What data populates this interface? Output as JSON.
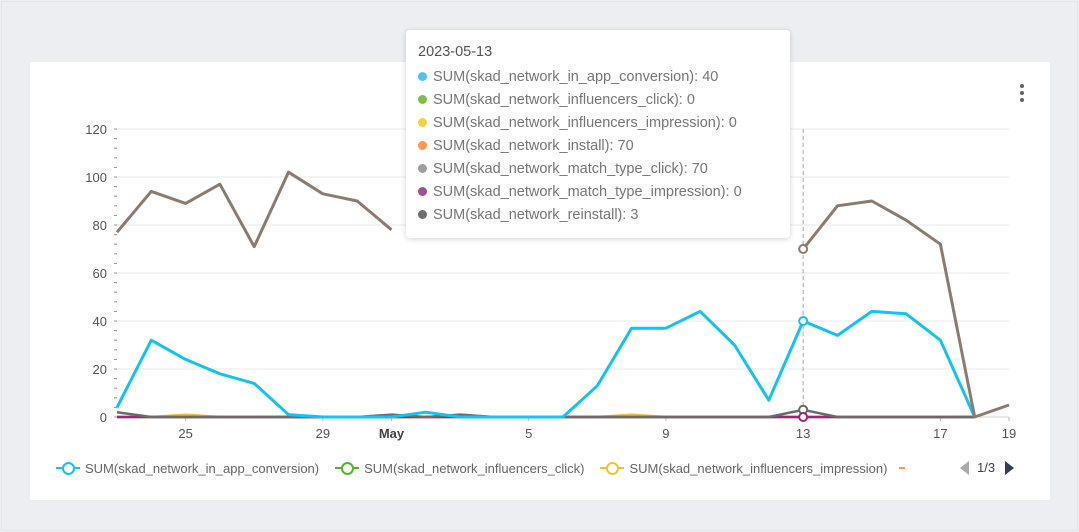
{
  "chart_data": {
    "type": "line",
    "x_ticks": [
      "25",
      "29",
      "May",
      "5",
      "9",
      "13",
      "17",
      "19"
    ],
    "ylim": [
      0,
      120
    ],
    "y_ticks": [
      0,
      20,
      40,
      60,
      80,
      100,
      120
    ],
    "grid": true,
    "series": [
      {
        "name": "SUM(skad_network_in_app_conversion)",
        "color": "#12c4f2",
        "values": [
          4,
          32,
          24,
          18,
          14,
          1,
          0,
          0,
          0,
          2,
          0,
          0,
          0,
          0,
          13,
          37,
          37,
          44,
          30,
          7,
          40,
          34,
          44,
          43,
          32,
          0,
          null
        ]
      },
      {
        "name": "SUM(skad_network_influencers_click)",
        "color": "#59b32a",
        "values": [
          0,
          0,
          0,
          0,
          0,
          0,
          0,
          0,
          0,
          0,
          0,
          0,
          0,
          0,
          0,
          0,
          0,
          0,
          0,
          0,
          0,
          0,
          0,
          0,
          0,
          0,
          null
        ]
      },
      {
        "name": "SUM(skad_network_influencers_impression)",
        "color": "#f2c42c",
        "values": [
          0,
          0,
          1,
          0,
          0,
          0,
          0,
          0,
          0,
          0,
          0,
          0,
          0,
          0,
          0,
          1,
          0,
          0,
          0,
          0,
          0,
          0,
          0,
          0,
          0,
          0,
          null
        ]
      },
      {
        "name": "SUM(skad_network_install)",
        "color": "#fd9a4b",
        "values": [
          77,
          94,
          89,
          97,
          71,
          102,
          93,
          90,
          78,
          null,
          null,
          null,
          null,
          null,
          null,
          null,
          null,
          null,
          null,
          null,
          70,
          88,
          90,
          82,
          72,
          0,
          5
        ]
      },
      {
        "name": "SUM(skad_network_match_type_click)",
        "color": "#8c7b71",
        "values": [
          77,
          94,
          89,
          97,
          71,
          102,
          93,
          90,
          78,
          null,
          null,
          null,
          null,
          null,
          null,
          null,
          null,
          null,
          null,
          null,
          70,
          88,
          90,
          82,
          72,
          0,
          5
        ]
      },
      {
        "name": "SUM(skad_network_match_type_impression)",
        "color": "#a0237f",
        "values": [
          0,
          0,
          0,
          0,
          0,
          0,
          0,
          0,
          0,
          0,
          0,
          0,
          0,
          0,
          0,
          0,
          0,
          0,
          0,
          0,
          0,
          0,
          0,
          0,
          0,
          0,
          null
        ]
      },
      {
        "name": "SUM(skad_network_reinstall)",
        "color": "#6b6b6b",
        "values": [
          2,
          0,
          0,
          0,
          0,
          0,
          0,
          0,
          1,
          0,
          1,
          0,
          0,
          0,
          0,
          0,
          0,
          0,
          0,
          0,
          3,
          0,
          0,
          0,
          0,
          0,
          null
        ]
      }
    ],
    "tooltip": {
      "title": "2023-05-13",
      "rows": [
        {
          "label": "SUM(skad_network_in_app_conversion): 40",
          "color": "#4fc3f7"
        },
        {
          "label": "SUM(skad_network_influencers_click): 0",
          "color": "#7ac143"
        },
        {
          "label": "SUM(skad_network_influencers_impression): 0",
          "color": "#f5d33f"
        },
        {
          "label": "SUM(skad_network_install): 70",
          "color": "#fd9a4b"
        },
        {
          "label": "SUM(skad_network_match_type_click): 70",
          "color": "#a0a0a0"
        },
        {
          "label": "SUM(skad_network_match_type_impression): 0",
          "color": "#a0518f"
        },
        {
          "label": "SUM(skad_network_reinstall): 3",
          "color": "#6f6f6f"
        }
      ]
    },
    "legend": {
      "items": [
        {
          "label": "SUM(skad_network_in_app_conversion)",
          "color": "#12c4f2"
        },
        {
          "label": "SUM(skad_network_influencers_click)",
          "color": "#59b32a"
        },
        {
          "label": "SUM(skad_network_influencers_impression)",
          "color": "#f2c42c"
        }
      ],
      "page": "1/3",
      "position": "bottom"
    }
  }
}
